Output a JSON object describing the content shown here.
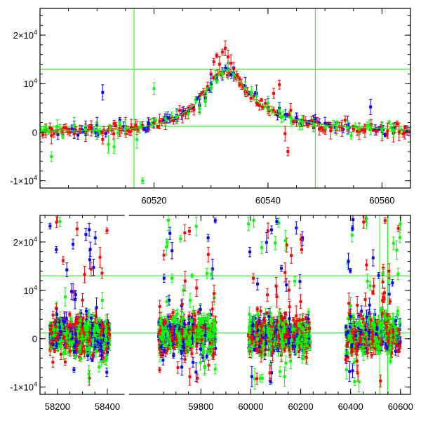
{
  "colors": {
    "red": "#ff0000",
    "blue": "#0000ff",
    "green": "#00ff00",
    "frame": "#000000"
  },
  "chart_data": [
    {
      "type": "scatter",
      "panel": "top",
      "xlim": [
        60500,
        60565
      ],
      "ylim": [
        -11500,
        25500
      ],
      "x_ticks": [
        60520,
        60540,
        60560
      ],
      "x_tick_labels": [
        "60520",
        "60540",
        "60560"
      ],
      "y_ticks": [
        -10000,
        0,
        10000,
        20000
      ],
      "y_tick_labels": [
        {
          "base": "-1×10",
          "exp": "4"
        },
        {
          "base": "0",
          "exp": ""
        },
        {
          "base": "10",
          "exp": "4"
        },
        {
          "base": "2×10",
          "exp": "4"
        }
      ],
      "vlines": [
        60516.5,
        60548.3
      ],
      "hlines": [
        1200,
        13000
      ],
      "model_curve": {
        "color": "green",
        "x": [
          60500,
          60510,
          60516,
          60520,
          60524,
          60527,
          60529,
          60531,
          60532.5,
          60534,
          60536,
          60538,
          60541,
          60545,
          60550,
          60555,
          60565
        ],
        "y": [
          200,
          400,
          700,
          1500,
          3000,
          5500,
          8500,
          11500,
          13000,
          12000,
          9000,
          6500,
          4000,
          2500,
          1500,
          1000,
          500
        ]
      },
      "series": [
        {
          "color": "red",
          "x": [
            60500.5,
            60501,
            60502,
            60503,
            60504,
            60505,
            60506,
            60507,
            60508,
            60509,
            60510,
            60511,
            60512,
            60513,
            60514,
            60515,
            60516,
            60517,
            60518,
            60519,
            60520,
            60521,
            60522,
            60523,
            60524,
            60525,
            60526,
            60527,
            60528,
            60529,
            60530,
            60530.5,
            60531,
            60531.5,
            60532,
            60532.5,
            60533,
            60533.5,
            60534,
            60534.5,
            60535,
            60536,
            60537,
            60538,
            60539,
            60540,
            60541,
            60542,
            60543,
            60543.5,
            60544,
            60545,
            60546,
            60547,
            60548,
            60549,
            60550,
            60551,
            60552,
            60553,
            60554,
            60555,
            60556,
            60557,
            60558,
            60559,
            60560,
            60561,
            60562,
            60563,
            60564
          ],
          "y": [
            -500,
            300,
            -700,
            200,
            -300,
            400,
            -200,
            600,
            -100,
            800,
            300,
            -1500,
            500,
            1800,
            700,
            1200,
            1000,
            900,
            1400,
            1600,
            1900,
            2200,
            2000,
            2600,
            3100,
            3500,
            4000,
            4600,
            5800,
            7200,
            12000,
            14500,
            15800,
            14000,
            16500,
            17300,
            15500,
            14200,
            13100,
            11600,
            9800,
            8400,
            7000,
            6100,
            5200,
            5000,
            8000,
            9800,
            -300,
            -4000,
            4500,
            2500,
            2000,
            1500,
            1000,
            600,
            400,
            300,
            500,
            800,
            700,
            600,
            200,
            300,
            500,
            200,
            100,
            300,
            -200,
            100,
            -100
          ]
        },
        {
          "color": "blue",
          "x": [
            60506,
            60508,
            60510,
            60511,
            60514,
            60519,
            60522,
            60524,
            60526,
            60528,
            60529,
            60530,
            60531,
            60532,
            60533,
            60534,
            60536,
            60538,
            60540,
            60542,
            60545,
            60548,
            60550,
            60554,
            60558,
            60562
          ],
          "y": [
            500,
            800,
            1500,
            8200,
            2500,
            1800,
            3000,
            3500,
            4500,
            5500,
            7000,
            10000,
            11000,
            12000,
            13000,
            12000,
            9500,
            8000,
            6000,
            5000,
            3000,
            2000,
            1800,
            1500,
            5200,
            800
          ]
        },
        {
          "color": "green",
          "x": [
            60501,
            60502,
            60503,
            60504,
            60506,
            60508,
            60510,
            60512,
            60513,
            60514,
            60515,
            60517,
            60518,
            60520,
            60522,
            60524,
            60526,
            60528,
            60529,
            60530,
            60531,
            60532,
            60533,
            60534,
            60536,
            60538,
            60540,
            60542,
            60544,
            60546,
            60548,
            60550,
            60552,
            60554,
            60556,
            60558,
            60560,
            60562
          ],
          "y": [
            800,
            -5000,
            1200,
            -800,
            1500,
            600,
            400,
            -2500,
            -3000,
            1800,
            1000,
            -1500,
            -10000,
            9000,
            2800,
            3200,
            3800,
            4800,
            6500,
            9000,
            10500,
            12000,
            12800,
            11800,
            9000,
            7500,
            6000,
            4500,
            3000,
            2000,
            1500,
            1000,
            800,
            900,
            700,
            500,
            400,
            300
          ]
        }
      ]
    },
    {
      "type": "scatter",
      "panel": "bottom",
      "xlim": [
        58130,
        60640
      ],
      "ylim": [
        -11500,
        25500
      ],
      "x_ticks": [
        58200,
        58400,
        59800,
        60000,
        60200,
        60400,
        60600
      ],
      "x_tick_labels": [
        "58200",
        "58400",
        "59800",
        "60000",
        "60200",
        "60400",
        "60600"
      ],
      "x_break": [
        58430,
        59610
      ],
      "y_ticks": [
        -10000,
        0,
        10000,
        20000
      ],
      "y_tick_labels": [
        {
          "base": "-1×10",
          "exp": "4"
        },
        {
          "base": "0",
          "exp": ""
        },
        {
          "base": "10",
          "exp": "4"
        },
        {
          "base": "2×10",
          "exp": "4"
        }
      ],
      "vlines": [
        60516.5,
        60548.3
      ],
      "hlines": [
        1200,
        13000
      ],
      "segments": [
        [
          58170,
          58410
        ],
        [
          59630,
          59860
        ],
        [
          59990,
          60240
        ],
        [
          60380,
          60600
        ]
      ],
      "flare": {
        "center": 60532.5,
        "peak": 19000
      },
      "series_colors": [
        "red",
        "blue",
        "green"
      ]
    }
  ]
}
